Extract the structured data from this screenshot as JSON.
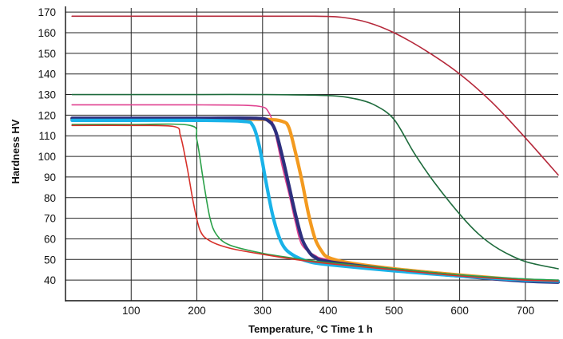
{
  "chart_data": {
    "type": "line",
    "xlabel": "Temperature, °C  Time 1 h",
    "ylabel": "Hardness  HV",
    "xlim": [
      0,
      750
    ],
    "ylim": [
      30,
      172
    ],
    "x_ticks": [
      100,
      200,
      300,
      400,
      500,
      600,
      700
    ],
    "y_ticks": [
      40,
      50,
      60,
      70,
      80,
      90,
      100,
      110,
      120,
      130,
      140,
      150,
      160,
      170
    ],
    "grid": true,
    "series": [
      {
        "color": "#b5283a",
        "line_width": 1.6,
        "x": [
          10,
          100,
          200,
          300,
          380,
          420,
          460,
          500,
          550,
          600,
          650,
          700,
          750
        ],
        "y": [
          168,
          168,
          168,
          168,
          168,
          167.5,
          165,
          160,
          151,
          140,
          126,
          109,
          91
        ]
      },
      {
        "color": "#1e6b3c",
        "line_width": 1.6,
        "x": [
          10,
          100,
          200,
          300,
          400,
          440,
          470,
          500,
          530,
          560,
          600,
          630,
          660,
          700,
          750
        ],
        "y": [
          130,
          130,
          130,
          130,
          129.5,
          128,
          125,
          118,
          102,
          88,
          72,
          62,
          55,
          49,
          45.5
        ]
      },
      {
        "color": "#e0408f",
        "line_width": 1.6,
        "x": [
          10,
          100,
          200,
          290,
          310,
          320,
          330,
          340,
          350,
          360,
          380,
          400,
          500,
          600,
          700,
          750
        ],
        "y": [
          125,
          125,
          125,
          124.5,
          121,
          110,
          95,
          82,
          68,
          57,
          52,
          50,
          45,
          42,
          40,
          39.5
        ]
      },
      {
        "color": "#f39a1f",
        "line_width": 4.2,
        "x": [
          10,
          100,
          200,
          300,
          330,
          340,
          350,
          360,
          370,
          380,
          390,
          400,
          430,
          500,
          600,
          700,
          750
        ],
        "y": [
          118,
          118,
          118,
          118,
          117,
          114,
          102,
          88,
          72,
          60,
          54,
          51,
          48.5,
          45.5,
          42.5,
          40,
          39.5
        ]
      },
      {
        "color": "#2d2f7e",
        "line_width": 4.2,
        "x": [
          10,
          100,
          200,
          290,
          310,
          320,
          330,
          340,
          350,
          360,
          370,
          380,
          400,
          500,
          600,
          700,
          750
        ],
        "y": [
          118.5,
          118.5,
          118.5,
          118.5,
          117,
          112,
          100,
          86,
          72,
          60,
          54,
          51,
          49,
          45,
          42,
          39.5,
          39
        ]
      },
      {
        "color": "#19b2e8",
        "line_width": 4.2,
        "x": [
          10,
          100,
          200,
          270,
          285,
          295,
          305,
          315,
          325,
          335,
          350,
          370,
          400,
          500,
          600,
          700,
          750
        ],
        "y": [
          117.5,
          117.5,
          117.5,
          117,
          115,
          105,
          88,
          72,
          61,
          55,
          51.5,
          49,
          47.5,
          44.5,
          42,
          40,
          39.5
        ]
      },
      {
        "color": "#2aa048",
        "line_width": 1.6,
        "x": [
          10,
          100,
          190,
          200,
          210,
          220,
          230,
          250,
          300,
          350,
          400,
          500,
          600,
          700,
          750
        ],
        "y": [
          115.5,
          115.5,
          115,
          108,
          88,
          70,
          62,
          57,
          53,
          50.5,
          48.5,
          45.5,
          42.5,
          40.5,
          40
        ]
      },
      {
        "color": "#d7312a",
        "line_width": 1.6,
        "x": [
          10,
          100,
          165,
          175,
          185,
          195,
          205,
          220,
          250,
          300,
          350,
          400,
          500,
          600,
          700,
          750
        ],
        "y": [
          115,
          115,
          114.5,
          110,
          95,
          77,
          64,
          59,
          55.5,
          52.5,
          50,
          48,
          45,
          42,
          40,
          39.5
        ]
      }
    ]
  }
}
